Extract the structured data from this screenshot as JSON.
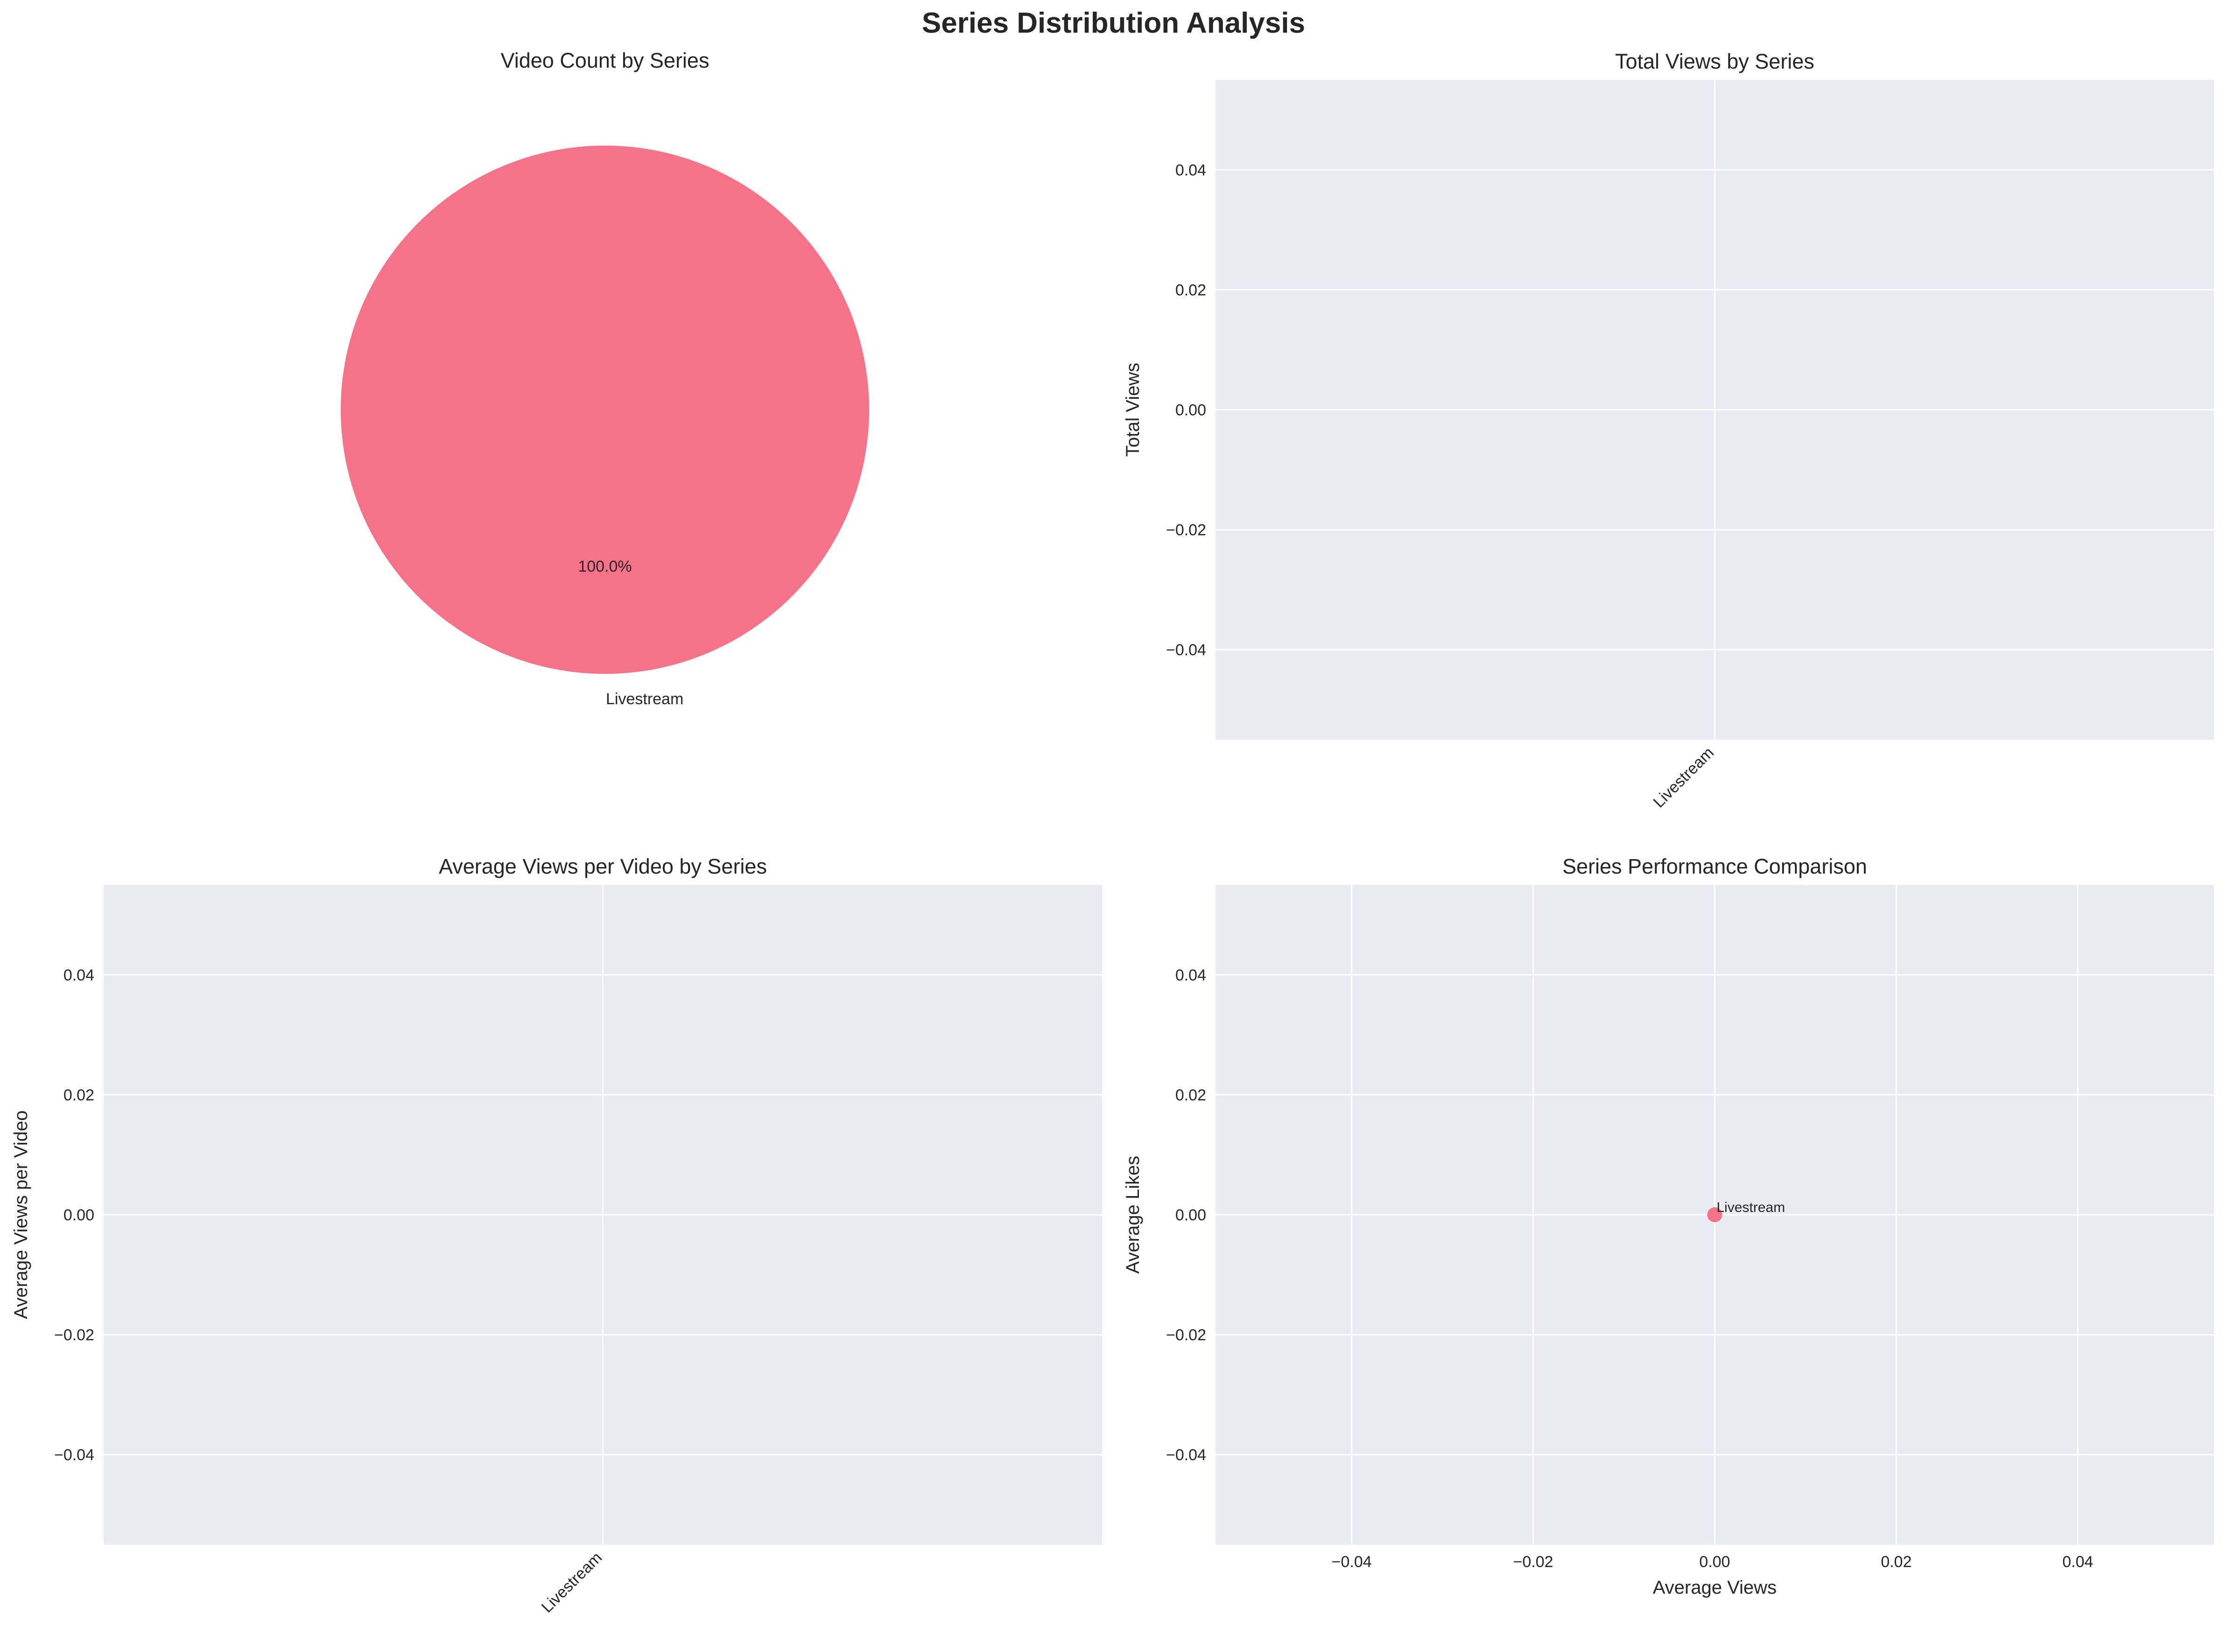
{
  "figure_title": "Series Distribution Analysis",
  "colors": {
    "series": "#f67288",
    "axes_face": "#eaeaf2",
    "grid": "#ffffff",
    "text": "#262626"
  },
  "chart_data": [
    {
      "type": "pie",
      "title": "Video Count by Series",
      "labels": [
        "Livestream"
      ],
      "values": [
        1
      ],
      "autopct_labels": [
        "100.0%"
      ]
    },
    {
      "type": "bar",
      "title": "Total Views by Series",
      "xlabel": "",
      "ylabel": "Total Views",
      "categories": [
        "Livestream"
      ],
      "values": [
        0
      ],
      "ylim": [
        -0.055,
        0.055
      ],
      "yticks": [
        0.04,
        0.02,
        0.0,
        -0.02,
        -0.04
      ],
      "ytick_labels": [
        "0.04",
        "0.02",
        "0.00",
        "−0.02",
        "−0.04"
      ],
      "grid": true
    },
    {
      "type": "bar",
      "title": "Average Views per Video by Series",
      "xlabel": "",
      "ylabel": "Average Views per Video",
      "categories": [
        "Livestream"
      ],
      "values": [
        0
      ],
      "ylim": [
        -0.055,
        0.055
      ],
      "yticks": [
        0.04,
        0.02,
        0.0,
        -0.02,
        -0.04
      ],
      "ytick_labels": [
        "0.04",
        "0.02",
        "0.00",
        "−0.02",
        "−0.04"
      ],
      "grid": true
    },
    {
      "type": "scatter",
      "title": "Series Performance Comparison",
      "xlabel": "Average Views",
      "ylabel": "Average Likes",
      "points": [
        {
          "x": 0,
          "y": 0,
          "label": "Livestream"
        }
      ],
      "xlim": [
        -0.055,
        0.055
      ],
      "ylim": [
        -0.055,
        0.055
      ],
      "xticks": [
        -0.04,
        -0.02,
        0.0,
        0.02,
        0.04
      ],
      "xtick_labels": [
        "−0.04",
        "−0.02",
        "0.00",
        "0.02",
        "0.04"
      ],
      "yticks": [
        0.04,
        0.02,
        0.0,
        -0.02,
        -0.04
      ],
      "ytick_labels": [
        "0.04",
        "0.02",
        "0.00",
        "−0.02",
        "−0.04"
      ],
      "grid": true
    }
  ]
}
